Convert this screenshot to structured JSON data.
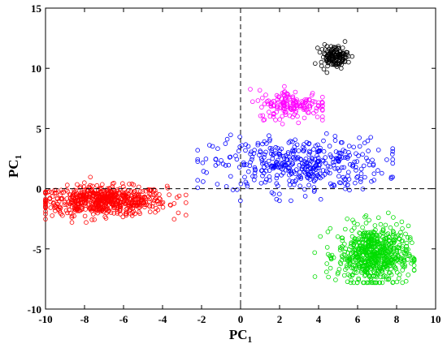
{
  "chart_data": {
    "type": "scatter",
    "title": "",
    "xlabel": "PC",
    "xlabel_sub": "1",
    "ylabel": "PC",
    "ylabel_sub": "1",
    "xlim": [
      -10,
      10
    ],
    "ylim": [
      -10,
      15
    ],
    "xticks": [
      "-10",
      "-8",
      "-6",
      "-4",
      "-2",
      "0",
      "2",
      "4",
      "6",
      "8",
      "10"
    ],
    "yticks": [
      "-10",
      "-5",
      "0",
      "5",
      "10",
      "15"
    ],
    "grid": false,
    "reference_lines": {
      "x": 0,
      "y": 0,
      "style": "dashed"
    },
    "marker": "open-circle",
    "clusters": [
      {
        "color": "#ff0000",
        "center": [
          -7.0,
          -1.0
        ],
        "spread": [
          1.6,
          0.6
        ],
        "x_range": [
          -10.0,
          -2.8
        ],
        "y_range": [
          -2.8,
          1.2
        ],
        "count": 650
      },
      {
        "color": "#0000ff",
        "center": [
          3.0,
          2.0
        ],
        "spread": [
          2.2,
          1.1
        ],
        "x_range": [
          -2.2,
          7.8
        ],
        "y_range": [
          -1.0,
          4.6
        ],
        "count": 420
      },
      {
        "color": "#00dd00",
        "center": [
          6.8,
          -5.5
        ],
        "spread": [
          0.9,
          1.2
        ],
        "x_range": [
          3.8,
          8.9
        ],
        "y_range": [
          -7.8,
          -0.6
        ],
        "count": 650
      },
      {
        "color": "#ff00ff",
        "center": [
          2.7,
          7.0
        ],
        "spread": [
          0.9,
          0.6
        ],
        "x_range": [
          0.5,
          4.2
        ],
        "y_range": [
          5.0,
          9.0
        ],
        "count": 170
      },
      {
        "color": "#000000",
        "center": [
          4.8,
          11.0
        ],
        "spread": [
          0.35,
          0.45
        ],
        "x_range": [
          3.8,
          5.9
        ],
        "y_range": [
          9.2,
          12.7
        ],
        "count": 140
      }
    ]
  }
}
